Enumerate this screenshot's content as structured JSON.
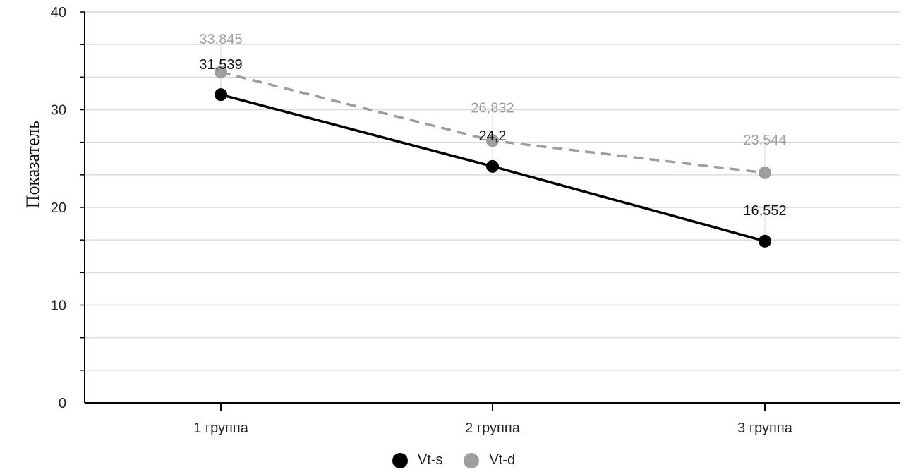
{
  "colors": {
    "vt_s": "#000000",
    "vt_d": "#9e9e9e",
    "grid": "#dcdcdc",
    "axis": "#000000",
    "tick_text": "#222222"
  },
  "chart_data": {
    "type": "line",
    "title": "",
    "xlabel": "",
    "ylabel": "Показатель",
    "categories": [
      "1 группа",
      "2 группа",
      "3 группа"
    ],
    "ylim": [
      0,
      40
    ],
    "y_ticks": [
      0,
      10,
      20,
      30,
      40
    ],
    "y_tick_labels": [
      "0",
      "10",
      "20",
      "30",
      "40"
    ],
    "minor_step": 3.333,
    "grid": true,
    "legend_position": "bottom-center",
    "series": [
      {
        "name": "Vt-s",
        "key": "vt_s",
        "style": "solid",
        "values": [
          31.539,
          24.2,
          16.552
        ],
        "labels": [
          "31,539",
          "24,2",
          "16,552"
        ]
      },
      {
        "name": "Vt-d",
        "key": "vt_d",
        "style": "dashed",
        "values": [
          33.845,
          26.832,
          23.544
        ],
        "labels": [
          "33,845",
          "26,832",
          "23,544"
        ]
      }
    ]
  }
}
